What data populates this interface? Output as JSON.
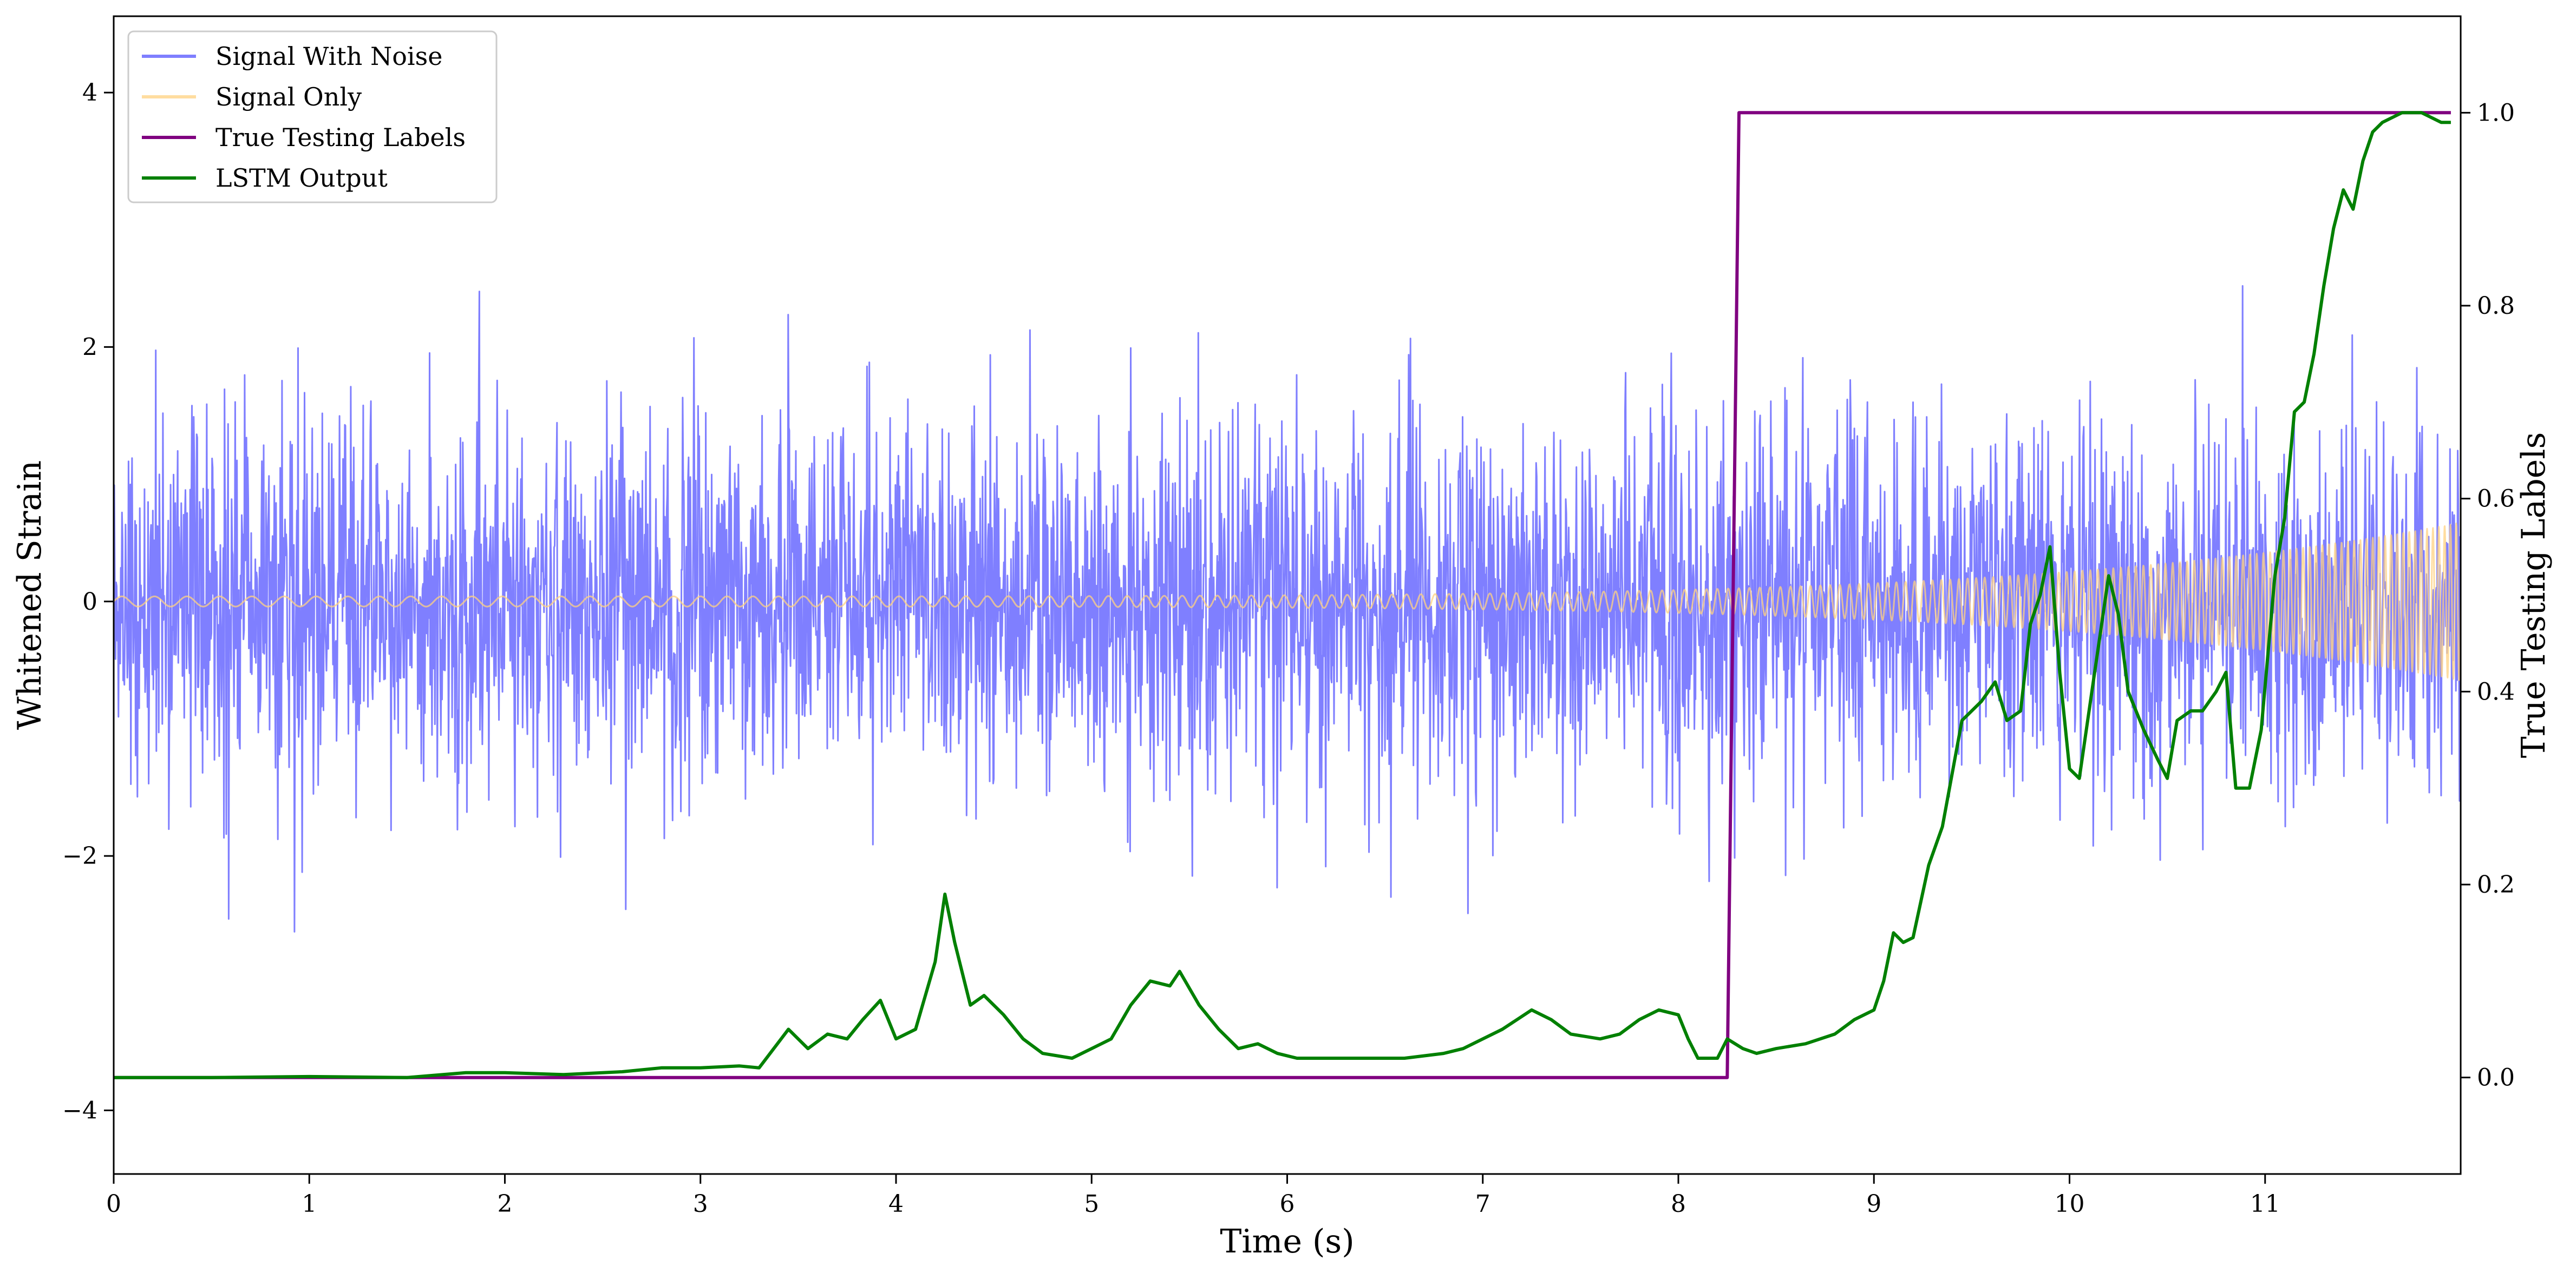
{
  "chart_data": {
    "type": "line",
    "xlabel": "Time (s)",
    "ylabel_left": "Whitened Strain",
    "ylabel_right": "True Testing Labels",
    "xlim": [
      0,
      12
    ],
    "ylim_left": [
      -4.5,
      4.6
    ],
    "ylim_right": [
      -0.1,
      1.1
    ],
    "x_ticks": [
      0,
      1,
      2,
      3,
      4,
      5,
      6,
      7,
      8,
      9,
      10,
      11
    ],
    "y_ticks_left": [
      -4,
      -2,
      0,
      2,
      4
    ],
    "y_ticks_left_labels": [
      "−4",
      "−2",
      "0",
      "2",
      "4"
    ],
    "y_ticks_right": [
      0.0,
      0.2,
      0.4,
      0.6,
      0.8,
      1.0
    ],
    "y_ticks_right_labels": [
      "0.0",
      "0.2",
      "0.4",
      "0.6",
      "0.8",
      "1.0"
    ],
    "grid": false,
    "legend_position": "top-left",
    "series": [
      {
        "name": "Signal With Noise",
        "axis": "left",
        "color": "#7f7fff",
        "kind": "noise",
        "std": 0.72,
        "points_per_second": 330,
        "x_range": [
          0,
          12
        ]
      },
      {
        "name": "Signal Only",
        "axis": "left",
        "color": "#ffd280",
        "kind": "chirp",
        "amplitude_start": 0.04,
        "amplitude_end": 0.62,
        "frequency_start_hz": 6,
        "frequency_end_hz": 34,
        "x_range": [
          0,
          12
        ]
      },
      {
        "name": "True Testing Labels",
        "axis": "right",
        "color": "#800080",
        "kind": "line",
        "x": [
          0,
          8.25,
          8.31,
          11.95
        ],
        "y": [
          0,
          0,
          1,
          1
        ]
      },
      {
        "name": "LSTM Output",
        "axis": "right",
        "color": "#008000",
        "kind": "line",
        "x": [
          0,
          0.5,
          1.0,
          1.5,
          1.8,
          2.0,
          2.3,
          2.6,
          2.8,
          3.0,
          3.2,
          3.3,
          3.45,
          3.55,
          3.65,
          3.75,
          3.83,
          3.92,
          4.0,
          4.1,
          4.2,
          4.25,
          4.3,
          4.38,
          4.45,
          4.55,
          4.65,
          4.75,
          4.9,
          5.0,
          5.1,
          5.2,
          5.3,
          5.4,
          5.45,
          5.55,
          5.65,
          5.75,
          5.85,
          5.95,
          6.05,
          6.2,
          6.4,
          6.6,
          6.8,
          6.9,
          7.0,
          7.1,
          7.25,
          7.35,
          7.45,
          7.6,
          7.7,
          7.8,
          7.9,
          8.0,
          8.05,
          8.1,
          8.2,
          8.25,
          8.33,
          8.4,
          8.5,
          8.65,
          8.8,
          8.9,
          9.0,
          9.05,
          9.1,
          9.15,
          9.2,
          9.28,
          9.35,
          9.45,
          9.55,
          9.62,
          9.68,
          9.75,
          9.8,
          9.85,
          9.9,
          9.95,
          10.0,
          10.05,
          10.1,
          10.15,
          10.2,
          10.25,
          10.3,
          10.38,
          10.45,
          10.5,
          10.55,
          10.62,
          10.68,
          10.75,
          10.8,
          10.85,
          10.92,
          10.98,
          11.05,
          11.1,
          11.15,
          11.2,
          11.25,
          11.3,
          11.35,
          11.4,
          11.45,
          11.5,
          11.55,
          11.6,
          11.7,
          11.8,
          11.9,
          11.95
        ],
        "y": [
          0,
          0,
          0.001,
          0,
          0.005,
          0.005,
          0.003,
          0.006,
          0.01,
          0.01,
          0.012,
          0.01,
          0.05,
          0.03,
          0.045,
          0.04,
          0.06,
          0.08,
          0.04,
          0.05,
          0.12,
          0.19,
          0.14,
          0.075,
          0.085,
          0.065,
          0.04,
          0.025,
          0.02,
          0.03,
          0.04,
          0.075,
          0.1,
          0.095,
          0.11,
          0.075,
          0.05,
          0.03,
          0.035,
          0.025,
          0.02,
          0.02,
          0.02,
          0.02,
          0.025,
          0.03,
          0.04,
          0.05,
          0.07,
          0.06,
          0.045,
          0.04,
          0.045,
          0.06,
          0.07,
          0.065,
          0.04,
          0.02,
          0.02,
          0.04,
          0.03,
          0.025,
          0.03,
          0.035,
          0.045,
          0.06,
          0.07,
          0.1,
          0.15,
          0.14,
          0.145,
          0.22,
          0.26,
          0.37,
          0.39,
          0.41,
          0.37,
          0.38,
          0.47,
          0.5,
          0.55,
          0.42,
          0.32,
          0.31,
          0.38,
          0.45,
          0.52,
          0.48,
          0.4,
          0.36,
          0.33,
          0.31,
          0.37,
          0.38,
          0.38,
          0.4,
          0.42,
          0.3,
          0.3,
          0.36,
          0.52,
          0.58,
          0.69,
          0.7,
          0.75,
          0.82,
          0.88,
          0.92,
          0.9,
          0.95,
          0.98,
          0.99,
          1.0,
          1.0,
          0.99,
          0.99
        ]
      }
    ]
  }
}
